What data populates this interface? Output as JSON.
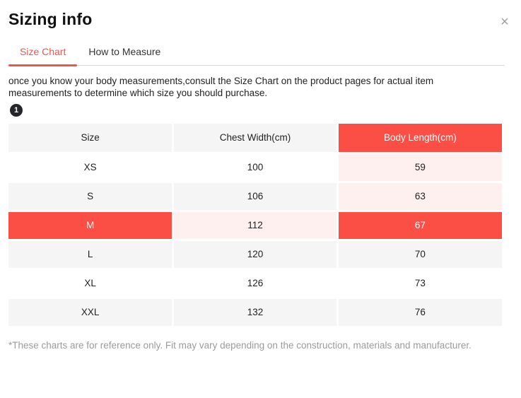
{
  "modal": {
    "title": "Sizing info",
    "close_label": "×"
  },
  "tabs": [
    {
      "label": "Size Chart",
      "active": true
    },
    {
      "label": "How to Measure",
      "active": false
    }
  ],
  "description": "once you know your body measurements,consult the Size Chart on the product pages for actual item measurements to determine which size you should purchase.",
  "step_badge": "1",
  "table": {
    "headers": [
      {
        "label": "Size",
        "style": "gray"
      },
      {
        "label": "Chest Width(cm)",
        "style": "gray"
      },
      {
        "label": "Body Length(cm)",
        "style": "red"
      }
    ],
    "rows": [
      {
        "cells": [
          {
            "text": "XS",
            "style": "white"
          },
          {
            "text": "100",
            "style": "white"
          },
          {
            "text": "59",
            "style": "pink"
          }
        ]
      },
      {
        "cells": [
          {
            "text": "S",
            "style": "gray"
          },
          {
            "text": "106",
            "style": "gray"
          },
          {
            "text": "63",
            "style": "pink"
          }
        ]
      },
      {
        "cells": [
          {
            "text": "M",
            "style": "red"
          },
          {
            "text": "112",
            "style": "pink"
          },
          {
            "text": "67",
            "style": "red"
          }
        ]
      },
      {
        "cells": [
          {
            "text": "L",
            "style": "gray"
          },
          {
            "text": "120",
            "style": "gray"
          },
          {
            "text": "70",
            "style": "gray"
          }
        ]
      },
      {
        "cells": [
          {
            "text": "XL",
            "style": "white"
          },
          {
            "text": "126",
            "style": "white"
          },
          {
            "text": "73",
            "style": "white"
          }
        ]
      },
      {
        "cells": [
          {
            "text": "XXL",
            "style": "gray"
          },
          {
            "text": "132",
            "style": "gray"
          },
          {
            "text": "76",
            "style": "gray"
          }
        ]
      }
    ],
    "highlighted_row": "M",
    "highlighted_column": "Body Length(cm)"
  },
  "footnote": "*These charts are for reference only. Fit may vary depending on the construction, materials and manufacturer.",
  "colors": {
    "accent_red": "#fb4e44",
    "tab_active_red": "#e8564e",
    "highlight_pink": "#fdf0ef",
    "row_gray": "#f5f5f5",
    "badge_black": "#25262a",
    "footnote_gray": "#9b9b9b"
  }
}
